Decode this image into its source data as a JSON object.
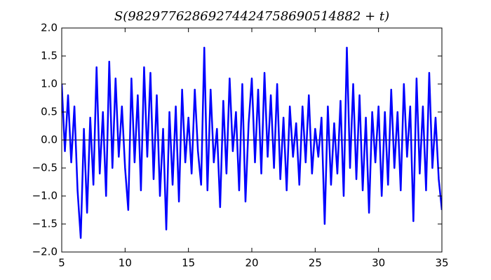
{
  "chart_data": {
    "type": "line",
    "title": "S(98297762869274424758690514882 + t)",
    "x": [
      5,
      5.25,
      5.5,
      5.75,
      6,
      6.25,
      6.5,
      6.75,
      7,
      7.25,
      7.5,
      7.75,
      8,
      8.25,
      8.5,
      8.75,
      9,
      9.25,
      9.5,
      9.75,
      10,
      10.25,
      10.5,
      10.75,
      11,
      11.25,
      11.5,
      11.75,
      12,
      12.25,
      12.5,
      12.75,
      13,
      13.25,
      13.5,
      13.75,
      14,
      14.25,
      14.5,
      14.75,
      15,
      15.25,
      15.5,
      15.75,
      16,
      16.25,
      16.5,
      16.75,
      17,
      17.25,
      17.5,
      17.75,
      18,
      18.25,
      18.5,
      18.75,
      19,
      19.25,
      19.5,
      19.75,
      20,
      20.25,
      20.5,
      20.75,
      21,
      21.25,
      21.5,
      21.75,
      22,
      22.25,
      22.5,
      22.75,
      23,
      23.25,
      23.5,
      23.75,
      24,
      24.25,
      24.5,
      24.75,
      25,
      25.25,
      25.5,
      25.75,
      26,
      26.25,
      26.5,
      26.75,
      27,
      27.25,
      27.5,
      27.75,
      28,
      28.25,
      28.5,
      28.75,
      29,
      29.25,
      29.5,
      29.75,
      30,
      30.25,
      30.5,
      30.75,
      31,
      31.25,
      31.5,
      31.75,
      32,
      32.25,
      32.5,
      32.75,
      33,
      33.25,
      33.5,
      33.75,
      34,
      34.25,
      34.5,
      34.75,
      35
    ],
    "values": [
      1.0,
      -0.2,
      0.8,
      -0.4,
      0.6,
      -0.9,
      -1.75,
      0.2,
      -1.3,
      0.4,
      -0.8,
      1.3,
      -0.6,
      0.5,
      -1.0,
      1.4,
      -0.5,
      1.1,
      -0.3,
      0.6,
      -0.5,
      -1.25,
      1.1,
      -0.4,
      0.8,
      -0.9,
      1.3,
      -0.3,
      1.2,
      -0.7,
      0.8,
      -1.0,
      0.2,
      -1.6,
      0.5,
      -0.8,
      0.6,
      -1.1,
      0.9,
      -0.4,
      0.4,
      -0.6,
      0.9,
      -0.2,
      -0.8,
      1.65,
      -0.9,
      0.9,
      -0.4,
      0.2,
      -1.2,
      0.7,
      -0.6,
      1.1,
      -0.2,
      0.5,
      -0.9,
      1.0,
      -1.1,
      0.3,
      1.1,
      -0.4,
      0.9,
      -0.6,
      1.2,
      -0.3,
      0.8,
      -0.5,
      1.0,
      -0.7,
      0.4,
      -0.9,
      0.6,
      -0.3,
      0.3,
      -0.8,
      0.6,
      -0.4,
      0.8,
      -0.6,
      0.2,
      -0.3,
      0.4,
      -1.5,
      0.6,
      -0.8,
      0.3,
      -0.6,
      0.7,
      -1.0,
      1.65,
      -0.5,
      1.0,
      -0.7,
      0.8,
      -0.9,
      0.4,
      -1.3,
      0.5,
      -0.4,
      0.6,
      -1.0,
      0.5,
      -0.8,
      0.9,
      -0.5,
      0.5,
      -0.9,
      1.0,
      -0.3,
      0.6,
      -1.45,
      1.1,
      -0.6,
      0.6,
      -0.9,
      1.2,
      -0.5,
      0.4,
      -0.7,
      -1.25
    ],
    "color": "#0000ff",
    "hline": 0,
    "xlim": [
      5,
      35
    ],
    "xticks": [
      5,
      10,
      15,
      20,
      25,
      30,
      35
    ],
    "ylim": [
      -2,
      2
    ],
    "yticks": [
      {
        "value": -2,
        "label": "−2.0"
      },
      {
        "value": -1.5,
        "label": "−1.5"
      },
      {
        "value": -1,
        "label": "−1.0"
      },
      {
        "value": -0.5,
        "label": "−0.5"
      },
      {
        "value": 0,
        "label": "0.0"
      },
      {
        "value": 0.5,
        "label": "0.5"
      },
      {
        "value": 1,
        "label": "1.0"
      },
      {
        "value": 1.5,
        "label": "1.5"
      },
      {
        "value": 2,
        "label": "2.0"
      }
    ]
  }
}
